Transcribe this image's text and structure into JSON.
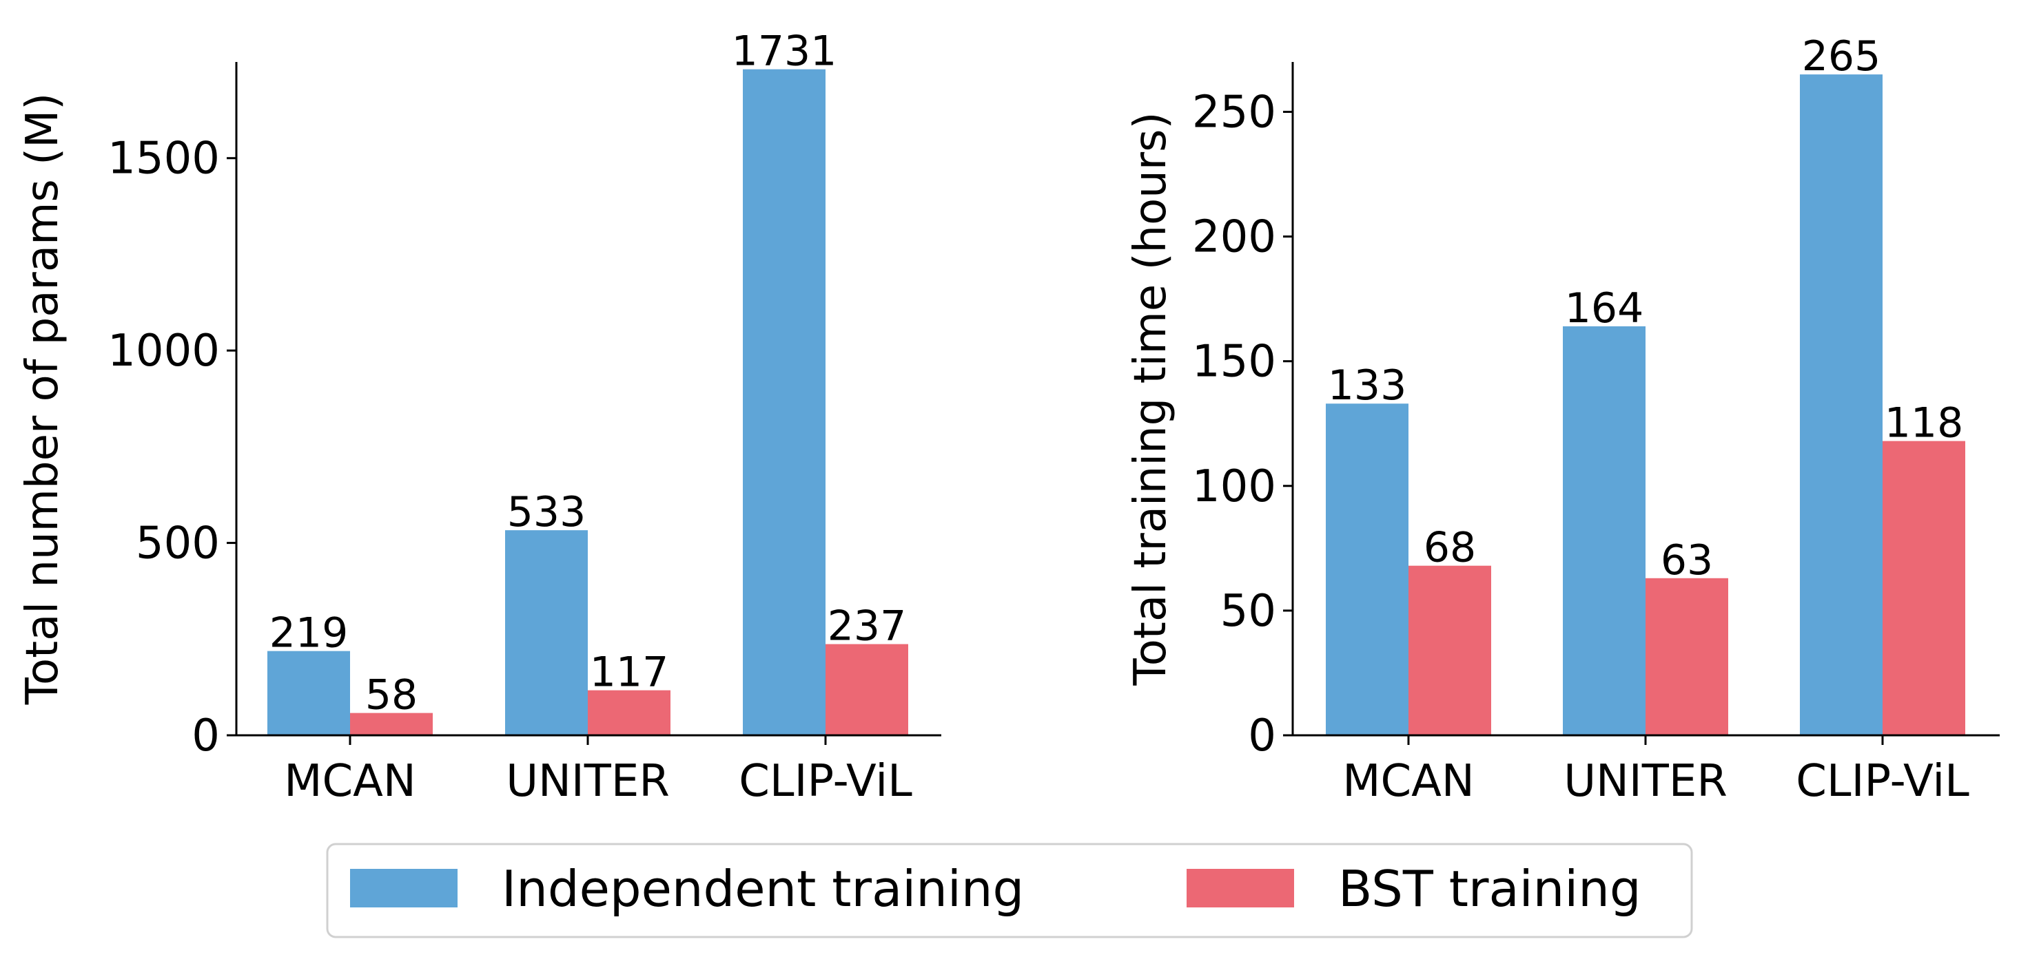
{
  "colors": {
    "independent": "#5fa5d7",
    "bst": "#ec6874",
    "axis": "#000000",
    "legend_border": "#d0d0d0"
  },
  "legend": {
    "placement": "bottom-center",
    "items": [
      {
        "label": "Independent training",
        "color_key": "independent"
      },
      {
        "label": "BST training",
        "color_key": "bst"
      }
    ]
  },
  "chart_data": [
    {
      "type": "bar",
      "title": "",
      "xlabel": "",
      "ylabel": "Total number of params (M)",
      "categories": [
        "MCAN",
        "UNITER",
        "CLIP-ViL"
      ],
      "ylim": [
        0,
        1750
      ],
      "yticks": [
        0,
        500,
        1000,
        1500
      ],
      "grid": false,
      "series": [
        {
          "name": "Independent training",
          "values": [
            219,
            533,
            1731
          ]
        },
        {
          "name": "BST training",
          "values": [
            58,
            117,
            237
          ]
        }
      ]
    },
    {
      "type": "bar",
      "title": "",
      "xlabel": "",
      "ylabel": "Total training time (hours)",
      "categories": [
        "MCAN",
        "UNITER",
        "CLIP-ViL"
      ],
      "ylim": [
        0,
        270
      ],
      "yticks": [
        0,
        50,
        100,
        150,
        200,
        250
      ],
      "grid": false,
      "series": [
        {
          "name": "Independent training",
          "values": [
            133,
            164,
            265
          ]
        },
        {
          "name": "BST training",
          "values": [
            68,
            63,
            118
          ]
        }
      ]
    }
  ]
}
